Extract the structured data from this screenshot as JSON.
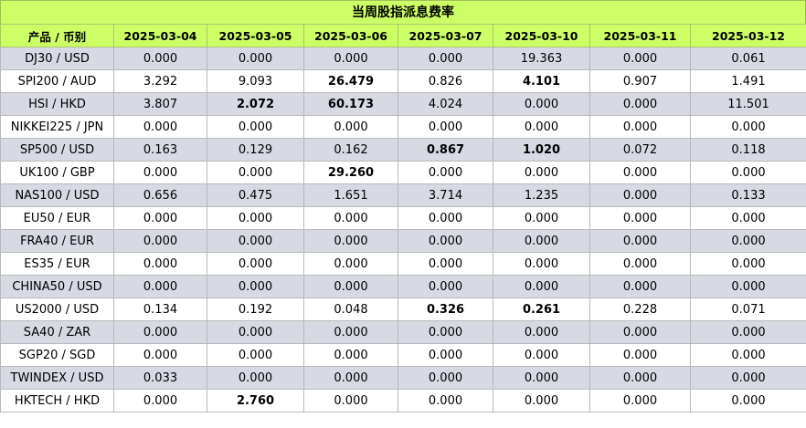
{
  "title": "当周股指派息费率",
  "headers": [
    "产品 / 币别",
    "2025-03-04",
    "2025-03-05",
    "2025-03-06",
    "2025-03-07",
    "2025-03-10",
    "2025-03-11",
    "2025-03-12"
  ],
  "rows": [
    {
      "product": "DJ30 / USD",
      "values": [
        "0.000",
        "0.000",
        "0.000",
        "0.000",
        "19.363",
        "0.000",
        "0.061"
      ],
      "bold": []
    },
    {
      "product": "SPI200 / AUD",
      "values": [
        "3.292",
        "9.093",
        "26.479",
        "0.826",
        "4.101",
        "0.907",
        "1.491"
      ],
      "bold": [
        2,
        4
      ]
    },
    {
      "product": "HSI / HKD",
      "values": [
        "3.807",
        "2.072",
        "60.173",
        "4.024",
        "0.000",
        "0.000",
        "11.501"
      ],
      "bold": [
        1,
        2
      ]
    },
    {
      "product": "NIKKEI225 / JPN",
      "values": [
        "0.000",
        "0.000",
        "0.000",
        "0.000",
        "0.000",
        "0.000",
        "0.000"
      ],
      "bold": []
    },
    {
      "product": "SP500 / USD",
      "values": [
        "0.163",
        "0.129",
        "0.162",
        "0.867",
        "1.020",
        "0.072",
        "0.118"
      ],
      "bold": [
        3,
        4
      ]
    },
    {
      "product": "UK100 / GBP",
      "values": [
        "0.000",
        "0.000",
        "29.260",
        "0.000",
        "0.000",
        "0.000",
        "0.000"
      ],
      "bold": [
        2
      ]
    },
    {
      "product": "NAS100 / USD",
      "values": [
        "0.656",
        "0.475",
        "1.651",
        "3.714",
        "1.235",
        "0.000",
        "0.133"
      ],
      "bold": []
    },
    {
      "product": "EU50 / EUR",
      "values": [
        "0.000",
        "0.000",
        "0.000",
        "0.000",
        "0.000",
        "0.000",
        "0.000"
      ],
      "bold": []
    },
    {
      "product": "FRA40 / EUR",
      "values": [
        "0.000",
        "0.000",
        "0.000",
        "0.000",
        "0.000",
        "0.000",
        "0.000"
      ],
      "bold": []
    },
    {
      "product": "ES35 / EUR",
      "values": [
        "0.000",
        "0.000",
        "0.000",
        "0.000",
        "0.000",
        "0.000",
        "0.000"
      ],
      "bold": []
    },
    {
      "product": "CHINA50 / USD",
      "values": [
        "0.000",
        "0.000",
        "0.000",
        "0.000",
        "0.000",
        "0.000",
        "0.000"
      ],
      "bold": []
    },
    {
      "product": "US2000 / USD",
      "values": [
        "0.134",
        "0.192",
        "0.048",
        "0.326",
        "0.261",
        "0.228",
        "0.071"
      ],
      "bold": [
        3,
        4
      ]
    },
    {
      "product": "SA40 / ZAR",
      "values": [
        "0.000",
        "0.000",
        "0.000",
        "0.000",
        "0.000",
        "0.000",
        "0.000"
      ],
      "bold": []
    },
    {
      "product": "SGP20 / SGD",
      "values": [
        "0.000",
        "0.000",
        "0.000",
        "0.000",
        "0.000",
        "0.000",
        "0.000"
      ],
      "bold": []
    },
    {
      "product": "TWINDEX / USD",
      "values": [
        "0.033",
        "0.000",
        "0.000",
        "0.000",
        "0.000",
        "0.000",
        "0.000"
      ],
      "bold": []
    },
    {
      "product": "HKTECH / HKD",
      "values": [
        "0.000",
        "2.760",
        "0.000",
        "0.000",
        "0.000",
        "0.000",
        "0.000"
      ],
      "bold": [
        1
      ]
    }
  ],
  "colors": {
    "header_bg": "#ccff66",
    "odd_row_bg": "#d7d9e3",
    "even_row_bg": "#ffffff",
    "border": "#b9b9b9"
  }
}
